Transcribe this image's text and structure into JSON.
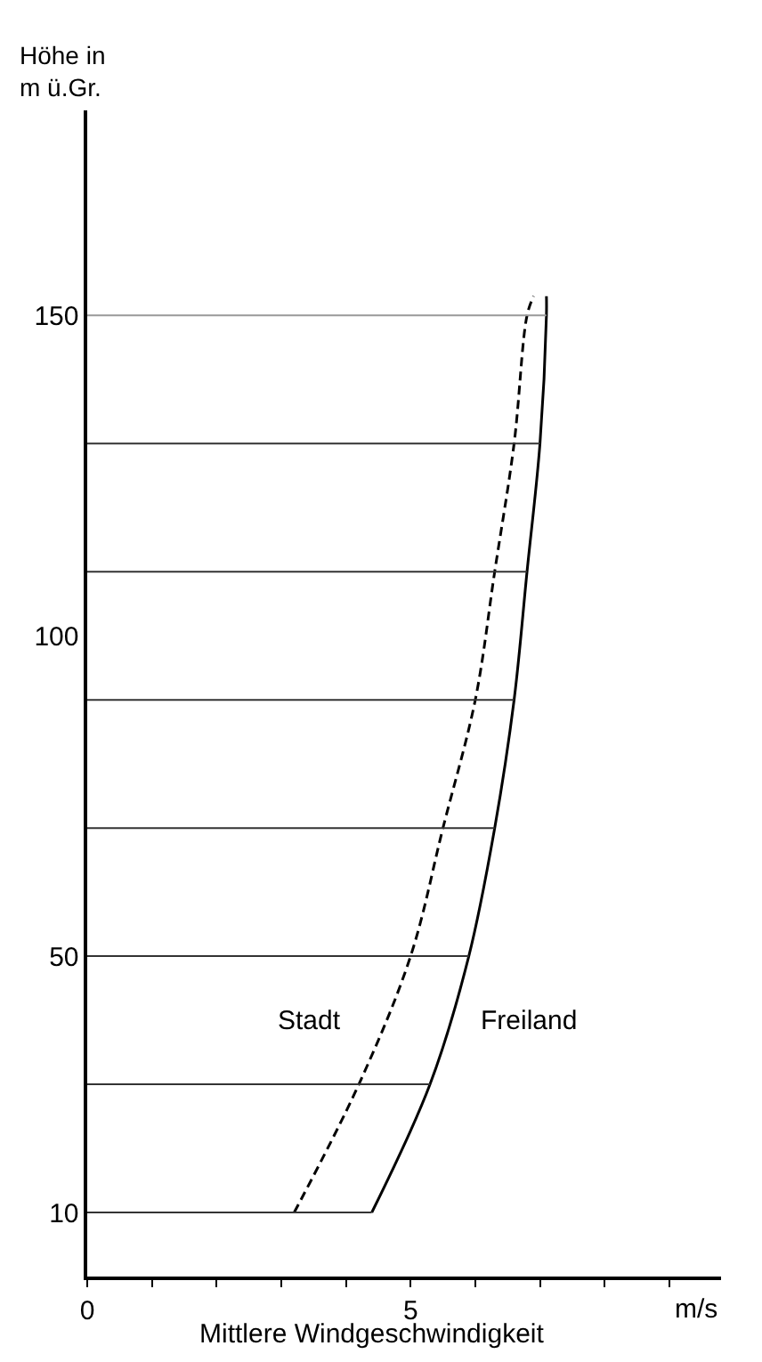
{
  "chart_data": {
    "type": "line",
    "ylabel": "Höhe in\nm ü.Gr.",
    "xlabel": "Mittlere Windgeschwindigkeit",
    "annotations": [
      "m/s"
    ],
    "series": [
      {
        "name": "Stadt",
        "color": "#000000",
        "line_style": "dashed",
        "x": [
          3.2,
          4.2,
          5.0,
          5.5,
          6.0,
          6.3,
          6.6,
          6.8,
          6.9
        ],
        "values": [
          10,
          30,
          50,
          70,
          90,
          110,
          130,
          150,
          153
        ]
      },
      {
        "name": "Freiland",
        "color": "#000000",
        "line_style": "solid",
        "x": [
          4.4,
          5.3,
          5.9,
          6.3,
          6.6,
          6.8,
          7.0,
          7.1,
          7.1
        ],
        "values": [
          10,
          30,
          50,
          70,
          90,
          110,
          130,
          150,
          153
        ]
      }
    ],
    "ref_lines": [
      {
        "axis": "y",
        "value": 10,
        "color": "#333333"
      },
      {
        "axis": "y",
        "value": 30,
        "color": "#333333"
      },
      {
        "axis": "y",
        "value": 50,
        "color": "#333333"
      },
      {
        "axis": "y",
        "value": 70,
        "color": "#333333"
      },
      {
        "axis": "y",
        "value": 90,
        "color": "#333333"
      },
      {
        "axis": "y",
        "value": 110,
        "color": "#333333"
      },
      {
        "axis": "y",
        "value": 130,
        "color": "#333333"
      },
      {
        "axis": "y",
        "value": 150,
        "color": "#999999"
      }
    ],
    "xlim": [
      0,
      9.8
    ],
    "ylim": [
      0,
      182
    ],
    "xticks": [
      0,
      {
        "value": 1,
        "label": null
      },
      {
        "value": 2,
        "label": null
      },
      {
        "value": 3,
        "label": null
      },
      {
        "value": 4,
        "label": null
      },
      5,
      {
        "value": 6,
        "label": null
      },
      {
        "value": 7,
        "label": null
      },
      {
        "value": 8,
        "label": null
      },
      {
        "value": 9,
        "label": null
      }
    ],
    "yticks": [
      10,
      50,
      100,
      150
    ],
    "grid": false,
    "legend": false,
    "marker": "none"
  }
}
